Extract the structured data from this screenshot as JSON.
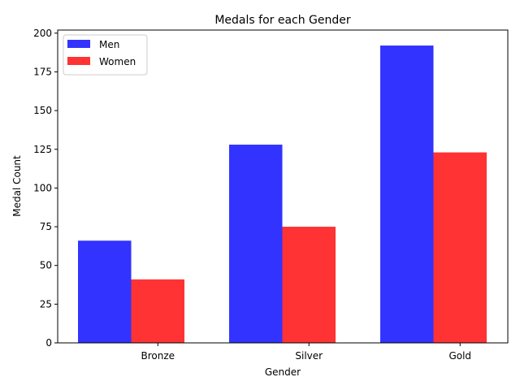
{
  "chart_data": {
    "type": "bar",
    "title": "Medals for each Gender",
    "xlabel": "Gender",
    "ylabel": "Medal Count",
    "categories": [
      "Bronze",
      "Silver",
      "Gold"
    ],
    "series": [
      {
        "name": "Men",
        "values": [
          66,
          128,
          192
        ],
        "color": "#3333ff"
      },
      {
        "name": "Women",
        "values": [
          41,
          75,
          123
        ],
        "color": "#ff3333"
      }
    ],
    "ylim": [
      0,
      202
    ],
    "yticks": [
      0,
      25,
      50,
      75,
      100,
      125,
      150,
      175,
      200
    ],
    "grid": false,
    "legend": "top-left"
  }
}
